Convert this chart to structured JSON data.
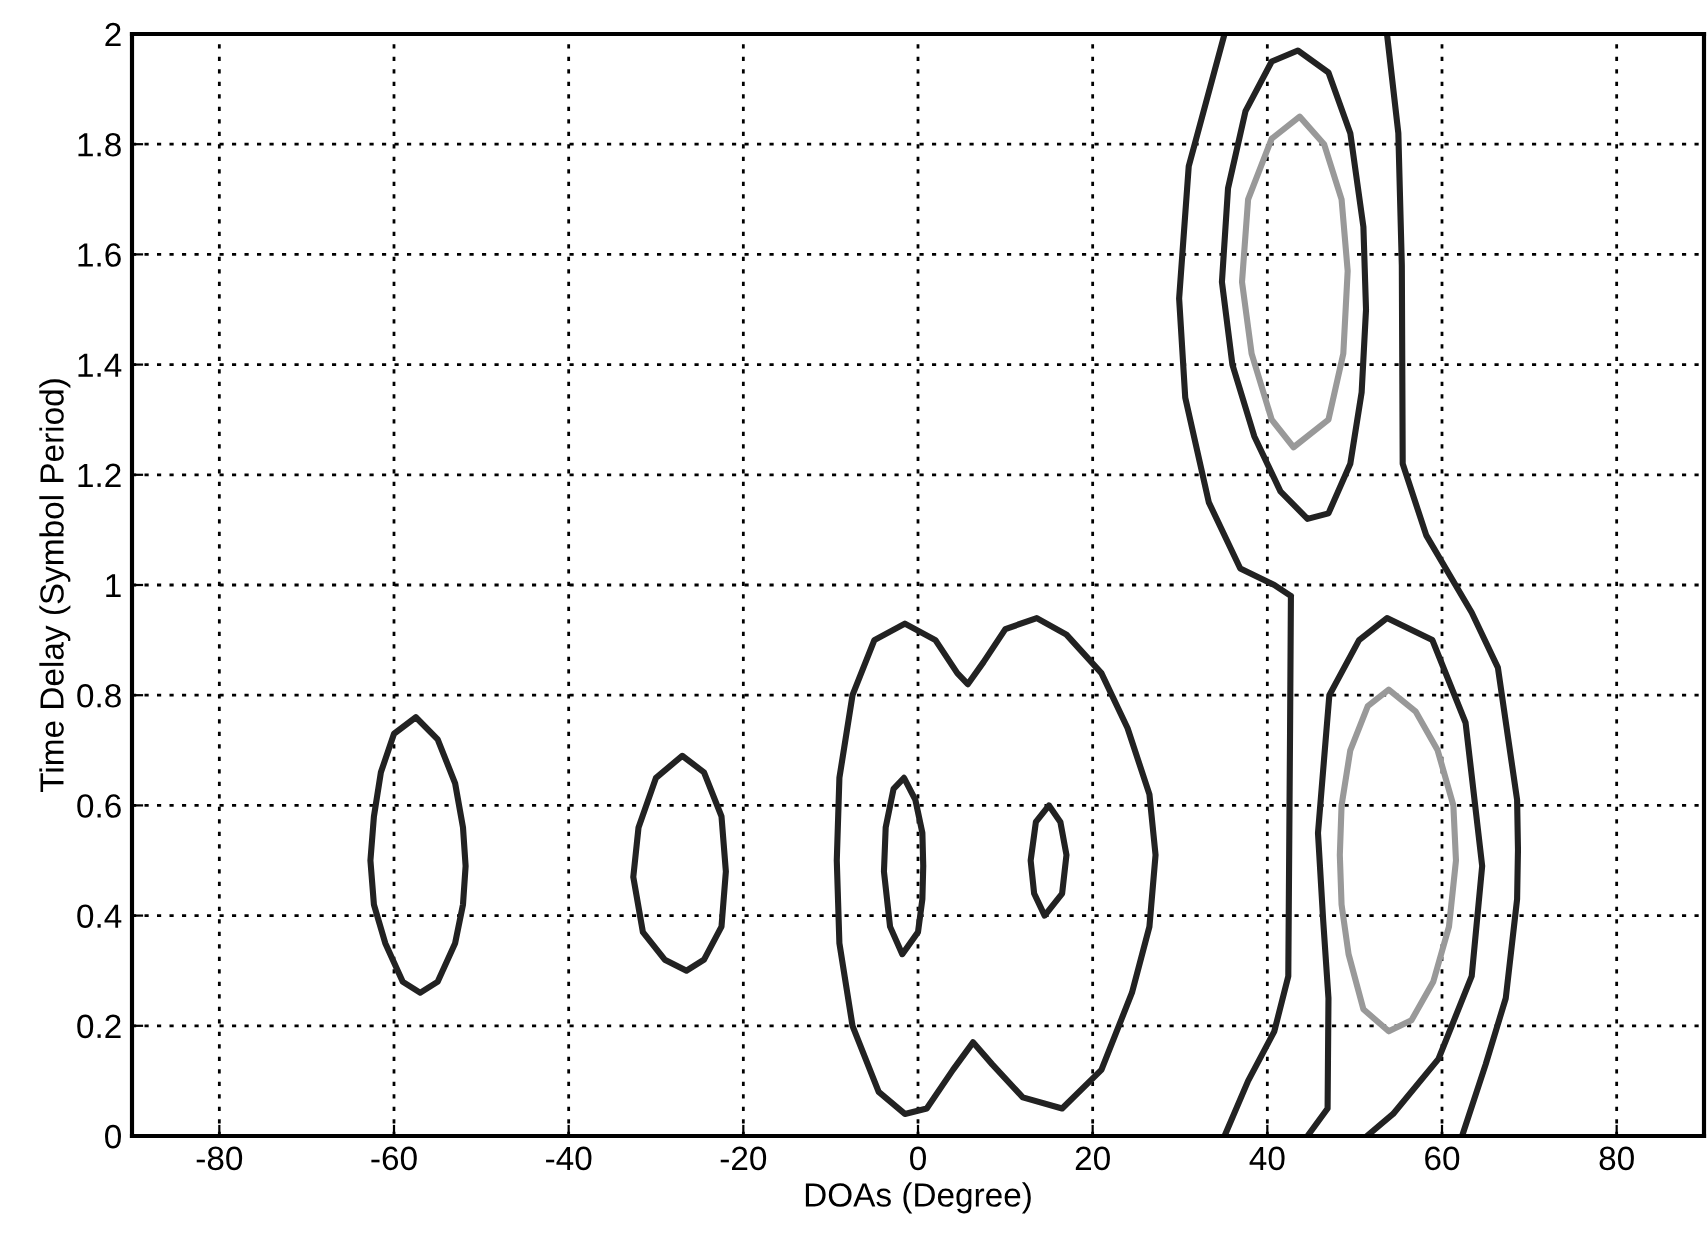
{
  "chart_data": {
    "type": "line",
    "xlabel": "DOAs (Degree)",
    "ylabel": "Time Delay (Symbol Period)",
    "xlim": [
      -90,
      90
    ],
    "ylim": [
      0,
      2
    ],
    "xticks": [
      -80,
      -60,
      -40,
      -20,
      0,
      20,
      40,
      60,
      80
    ],
    "yticks": [
      0,
      0.2,
      0.4,
      0.6,
      0.8,
      1,
      {
        "value": 1.2,
        "label": "1.2"
      },
      1.4,
      1.6,
      1.8,
      2
    ],
    "grid": true,
    "series": [
      {
        "color": "#222222",
        "x": [
          -62.7,
          -62.3,
          -61.5,
          -60,
          -57.5,
          -55,
          -53,
          -52.1,
          -51.8,
          null,
          -62.7,
          -62.3,
          -61,
          -59,
          -57,
          -55,
          -53,
          -52.1,
          -51.8
        ],
        "values": [
          0.5,
          0.58,
          0.66,
          0.73,
          0.76,
          0.72,
          0.64,
          0.56,
          0.49,
          null,
          0.5,
          0.42,
          0.35,
          0.28,
          0.26,
          0.28,
          0.35,
          0.42,
          0.49
        ]
      },
      {
        "color": "#222222",
        "x": [
          -32.6,
          -32,
          -30,
          -27,
          -24.5,
          -22.5,
          -22,
          null,
          -32.6,
          -31.5,
          -29,
          -26.5,
          -24.5,
          -22.5,
          -22
        ],
        "values": [
          0.47,
          0.56,
          0.65,
          0.69,
          0.66,
          0.58,
          0.48,
          null,
          0.47,
          0.37,
          0.32,
          0.3,
          0.32,
          0.38,
          0.48
        ]
      },
      {
        "color": "#222222",
        "x": [
          -9.3,
          -9,
          -7.5,
          -5,
          -1.5,
          2,
          4.5,
          5.7,
          7.5,
          10,
          13.6,
          17,
          21,
          24,
          26.5,
          27.2,
          null,
          -9.3,
          -9,
          -7.5,
          -4.5,
          -1.5,
          1,
          4,
          6.3,
          8.5,
          12,
          16.5,
          21,
          24.5,
          26.5,
          27.2
        ],
        "values": [
          0.5,
          0.65,
          0.8,
          0.9,
          0.93,
          0.9,
          0.84,
          0.82,
          0.86,
          0.92,
          0.94,
          0.91,
          0.84,
          0.74,
          0.62,
          0.51,
          null,
          0.5,
          0.35,
          0.2,
          0.08,
          0.04,
          0.05,
          0.12,
          0.17,
          0.13,
          0.07,
          0.05,
          0.12,
          0.26,
          0.38,
          0.51
        ]
      },
      {
        "color": "#222222",
        "x": [
          -3.9,
          -3.7,
          -2.8,
          -1.6,
          -0.3,
          0.5,
          0.6,
          null,
          -3.9,
          -3.2,
          -1.8,
          0,
          0.5,
          0.6
        ],
        "values": [
          0.48,
          0.56,
          0.63,
          0.65,
          0.61,
          0.55,
          0.49,
          null,
          0.48,
          0.38,
          0.33,
          0.37,
          0.43,
          0.49
        ]
      },
      {
        "color": "#222222",
        "x": [
          12.9,
          13.5,
          15,
          16.3,
          17,
          null,
          12.9,
          13.3,
          14.5,
          16.5,
          17
        ],
        "values": [
          0.5,
          0.57,
          0.6,
          0.57,
          0.51,
          null,
          0.5,
          0.44,
          0.4,
          0.44,
          0.51
        ]
      },
      {
        "color": "#222222",
        "x": [
          29.9,
          31,
          35.1,
          null,
          29.9,
          30.6,
          33.3,
          36.9,
          40.8,
          42.7,
          null,
          35.1,
          37.8,
          40.8,
          42.4,
          42.6,
          42.7
        ],
        "values": [
          1.52,
          1.76,
          2,
          null,
          1.52,
          1.34,
          1.15,
          1.03,
          1.0,
          0.98,
          null,
          0,
          0.1,
          0.19,
          0.29,
          0.73,
          0.98
        ]
      },
      {
        "color": "#222222",
        "x": [
          53.7,
          55,
          55.4,
          55.5,
          58.2,
          63.4,
          66.4,
          68.6,
          68.7,
          null,
          62.3,
          65,
          67.3,
          68.6,
          68.7
        ],
        "values": [
          2,
          1.82,
          1.58,
          1.22,
          1.09,
          0.95,
          0.85,
          0.61,
          0.52,
          null,
          0,
          0.13,
          0.25,
          0.43,
          0.52
        ]
      },
      {
        "color": "#222222",
        "x": [
          34.8,
          35.5,
          37.5,
          40.5,
          43.5,
          47,
          49.5,
          51,
          51.3,
          null,
          34.8,
          36,
          38.5,
          41.5,
          44.6,
          47,
          49.5,
          50.8,
          51.3
        ],
        "values": [
          1.55,
          1.72,
          1.86,
          1.95,
          1.97,
          1.93,
          1.82,
          1.65,
          1.5,
          null,
          1.55,
          1.4,
          1.27,
          1.17,
          1.12,
          1.13,
          1.22,
          1.35,
          1.5
        ]
      },
      {
        "color": "#999999",
        "x": [
          37.1,
          37.8,
          40.5,
          43.7,
          46.5,
          48.5,
          49.2,
          null,
          37.1,
          38.2,
          40.5,
          43,
          47,
          48.7,
          49.2
        ],
        "values": [
          1.55,
          1.7,
          1.81,
          1.85,
          1.8,
          1.7,
          1.57,
          null,
          1.55,
          1.42,
          1.3,
          1.25,
          1.3,
          1.42,
          1.57
        ]
      },
      {
        "color": "#222222",
        "x": [
          44.6,
          46.9,
          47,
          null,
          45.8,
          46.4,
          47,
          null,
          45.8,
          47.1,
          50.5,
          53.7,
          58.9,
          62.7,
          64.6,
          null,
          51.4,
          54.4,
          59.6,
          63.4,
          64.6
        ],
        "values": [
          0,
          0.05,
          0.25,
          null,
          0.55,
          0.39,
          0.25,
          null,
          0.55,
          0.8,
          0.9,
          0.94,
          0.9,
          0.75,
          0.49,
          null,
          0,
          0.04,
          0.14,
          0.29,
          0.49
        ]
      },
      {
        "color": "#999999",
        "x": [
          48.3,
          48.5,
          49.5,
          51.5,
          53.9,
          57,
          59.5,
          61.3,
          61.6,
          null,
          48.3,
          48.5,
          49.3,
          51,
          53.9,
          56.5,
          59,
          60.8,
          61.6
        ],
        "values": [
          0.51,
          0.6,
          0.7,
          0.78,
          0.81,
          0.77,
          0.7,
          0.6,
          0.5,
          null,
          0.51,
          0.42,
          0.33,
          0.23,
          0.19,
          0.21,
          0.28,
          0.38,
          0.5
        ]
      }
    ]
  }
}
